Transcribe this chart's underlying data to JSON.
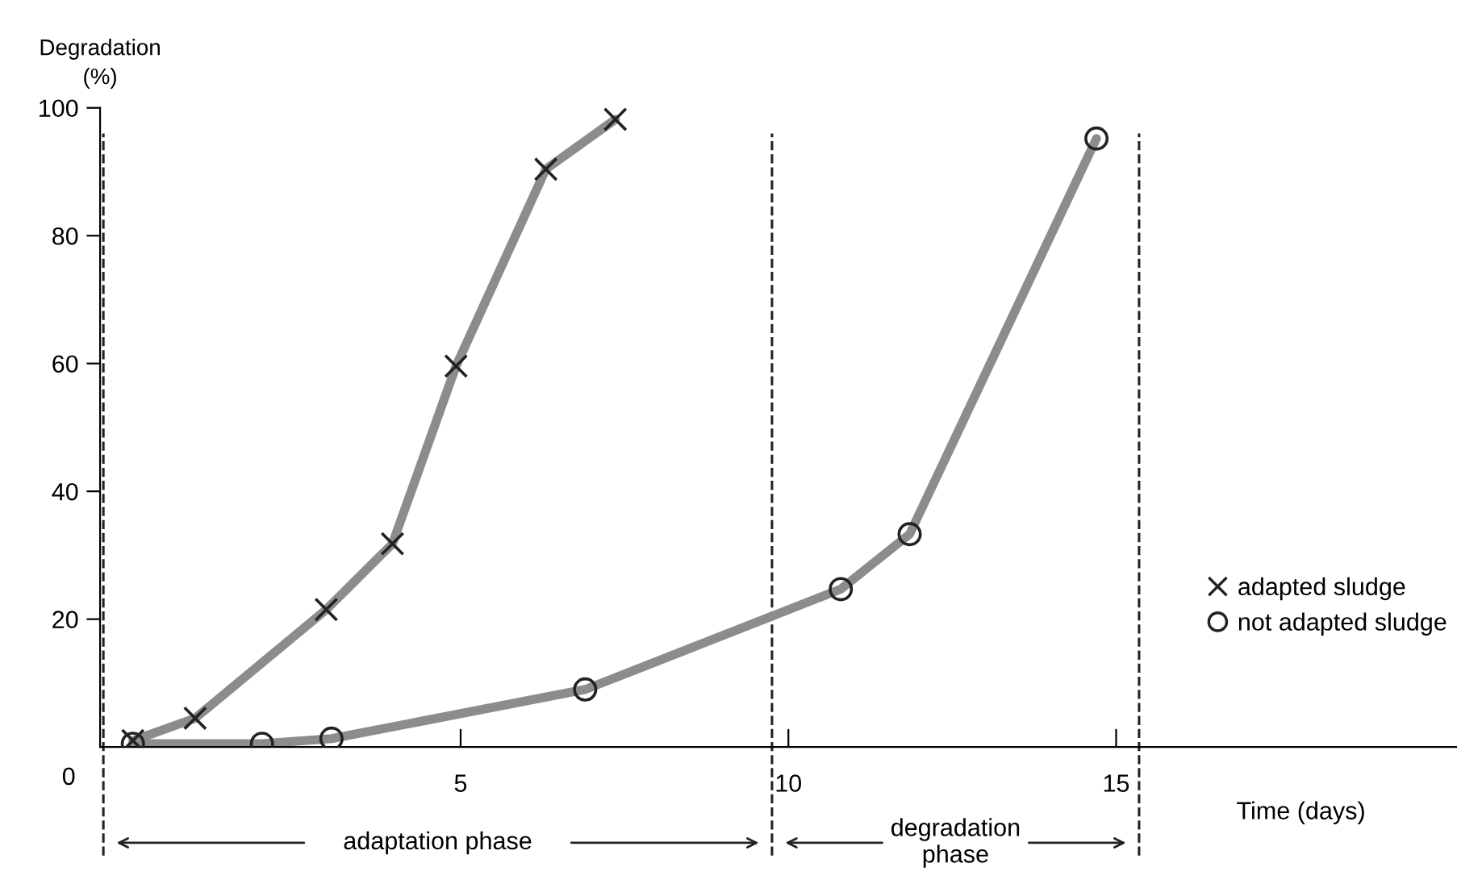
{
  "chart_data": {
    "type": "line",
    "xlabel": "Time (days)",
    "ylabel": "Degradation\n(%)",
    "xlim": [
      -0.5,
      20.2
    ],
    "ylim": [
      0,
      100
    ],
    "xticks": [
      5,
      10,
      15
    ],
    "yticks": [
      20,
      40,
      60,
      80,
      100
    ],
    "series": [
      {
        "name": "adapted sludge",
        "color": "#8c8c8c",
        "marker": "cross",
        "x": [
          0,
          0.95,
          2.95,
          3.96,
          4.93,
          6.3,
          7.36
        ],
        "values": [
          1,
          4.5,
          21.5,
          31.8,
          59.6,
          90.4,
          98.2
        ]
      },
      {
        "name": "not adapted sludge",
        "color": "#8c8c8c",
        "marker": "circle",
        "x": [
          0,
          1.97,
          3.03,
          6.9,
          10.8,
          11.85,
          14.7
        ],
        "values": [
          0.5,
          0.5,
          1.3,
          9,
          24.7,
          33.3,
          95.2
        ]
      }
    ],
    "ref_lines": [
      {
        "axis": "x",
        "value": -0.45,
        "line_style": "dashed"
      },
      {
        "axis": "x",
        "value": 9.75,
        "line_style": "dashed"
      },
      {
        "axis": "x",
        "value": 15.35,
        "line_style": "dashed"
      }
    ],
    "annotations": [
      {
        "text": "0",
        "x": -0.5,
        "y": 0
      },
      "adaptation phase",
      "degradation\nphase"
    ],
    "legend": "right",
    "grid": false
  }
}
